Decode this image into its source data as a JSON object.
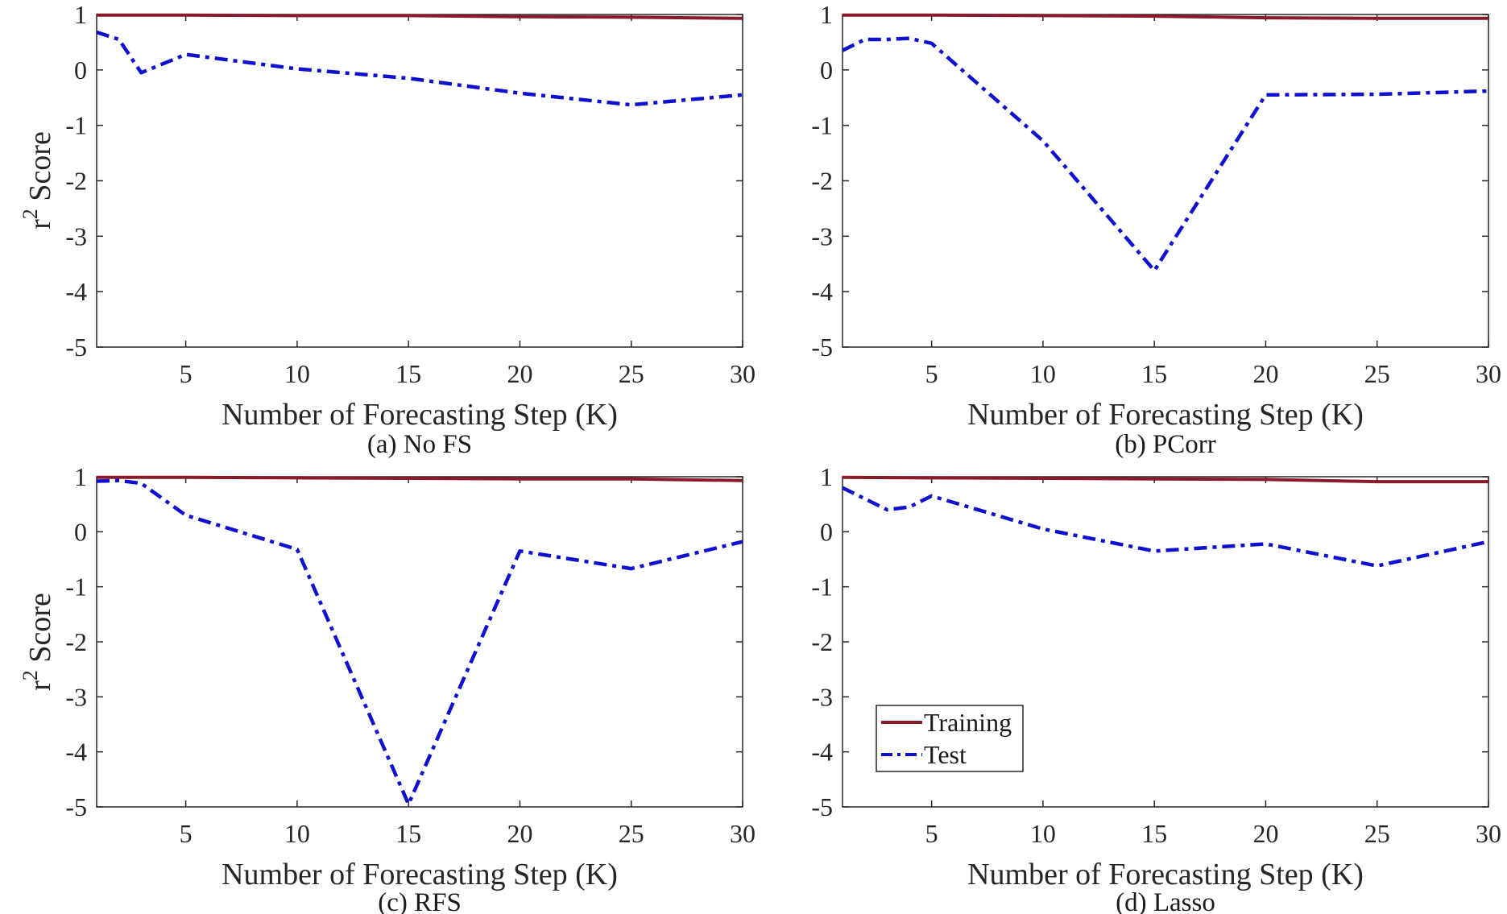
{
  "legend": {
    "training": "Training",
    "test": "Test"
  },
  "chart_data": [
    {
      "type": "line",
      "caption": "(a) No FS",
      "xlabel": "Number of Forecasting Step (K)",
      "ylabel": "r2 Score",
      "xlim": [
        1,
        30
      ],
      "ylim": [
        -5,
        1
      ],
      "xticks": [
        5,
        10,
        15,
        20,
        25,
        30
      ],
      "yticks": [
        -5,
        -4,
        -3,
        -2,
        -1,
        0,
        1
      ],
      "series": [
        {
          "name": "Training",
          "color": "#8b1a2b",
          "style": "solid",
          "x": [
            1,
            5,
            10,
            15,
            20,
            25,
            30
          ],
          "y": [
            0.99,
            0.99,
            0.98,
            0.98,
            0.96,
            0.95,
            0.93
          ]
        },
        {
          "name": "Test",
          "color": "#1010d0",
          "style": "dashdot",
          "x": [
            1,
            2,
            3,
            5,
            10,
            15,
            20,
            25,
            30
          ],
          "y": [
            0.68,
            0.55,
            -0.05,
            0.28,
            0.02,
            -0.15,
            -0.42,
            -0.63,
            -0.45
          ]
        }
      ]
    },
    {
      "type": "line",
      "caption": "(b) PCorr",
      "xlabel": "Number of Forecasting Step (K)",
      "ylabel": "",
      "xlim": [
        1,
        30
      ],
      "ylim": [
        -5,
        1
      ],
      "xticks": [
        5,
        10,
        15,
        20,
        25,
        30
      ],
      "yticks": [
        -5,
        -4,
        -3,
        -2,
        -1,
        0,
        1
      ],
      "series": [
        {
          "name": "Training",
          "color": "#8b1a2b",
          "style": "solid",
          "x": [
            1,
            5,
            10,
            15,
            20,
            25,
            30
          ],
          "y": [
            0.99,
            0.99,
            0.98,
            0.97,
            0.94,
            0.93,
            0.93
          ]
        },
        {
          "name": "Test",
          "color": "#1010d0",
          "style": "dashdot",
          "x": [
            1,
            2,
            3,
            4,
            5,
            10,
            15,
            20,
            25,
            30
          ],
          "y": [
            0.35,
            0.55,
            0.55,
            0.57,
            0.48,
            -1.28,
            -3.62,
            -0.45,
            -0.44,
            -0.38
          ]
        }
      ]
    },
    {
      "type": "line",
      "caption": "(c) RFS",
      "xlabel": "Number of Forecasting Step (K)",
      "ylabel": "r2 Score",
      "xlim": [
        1,
        30
      ],
      "ylim": [
        -5,
        1
      ],
      "xticks": [
        5,
        10,
        15,
        20,
        25,
        30
      ],
      "yticks": [
        -5,
        -4,
        -3,
        -2,
        -1,
        0,
        1
      ],
      "series": [
        {
          "name": "Training",
          "color": "#8b1a2b",
          "style": "solid",
          "x": [
            1,
            5,
            10,
            15,
            20,
            25,
            30
          ],
          "y": [
            0.99,
            0.99,
            0.98,
            0.97,
            0.96,
            0.96,
            0.93
          ]
        },
        {
          "name": "Test",
          "color": "#1010d0",
          "style": "dashdot",
          "x": [
            1,
            2,
            3,
            5,
            10,
            15,
            20,
            25,
            30
          ],
          "y": [
            0.92,
            0.93,
            0.88,
            0.3,
            -0.32,
            -4.95,
            -0.35,
            -0.67,
            -0.18
          ]
        }
      ]
    },
    {
      "type": "line",
      "caption": "(d) Lasso",
      "xlabel": "Number of Forecasting Step (K)",
      "ylabel": "",
      "xlim": [
        1,
        30
      ],
      "ylim": [
        -5,
        1
      ],
      "xticks": [
        5,
        10,
        15,
        20,
        25,
        30
      ],
      "yticks": [
        -5,
        -4,
        -3,
        -2,
        -1,
        0,
        1
      ],
      "series": [
        {
          "name": "Training",
          "color": "#8b1a2b",
          "style": "solid",
          "x": [
            1,
            5,
            10,
            15,
            20,
            25,
            30
          ],
          "y": [
            0.99,
            0.98,
            0.97,
            0.96,
            0.95,
            0.91,
            0.91
          ]
        },
        {
          "name": "Test",
          "color": "#1010d0",
          "style": "dashdot",
          "x": [
            1,
            2,
            3,
            4,
            5,
            10,
            15,
            20,
            25,
            30
          ],
          "y": [
            0.8,
            0.6,
            0.4,
            0.45,
            0.65,
            0.05,
            -0.35,
            -0.22,
            -0.62,
            -0.18
          ]
        }
      ],
      "legend_position": "bottom-left"
    }
  ]
}
